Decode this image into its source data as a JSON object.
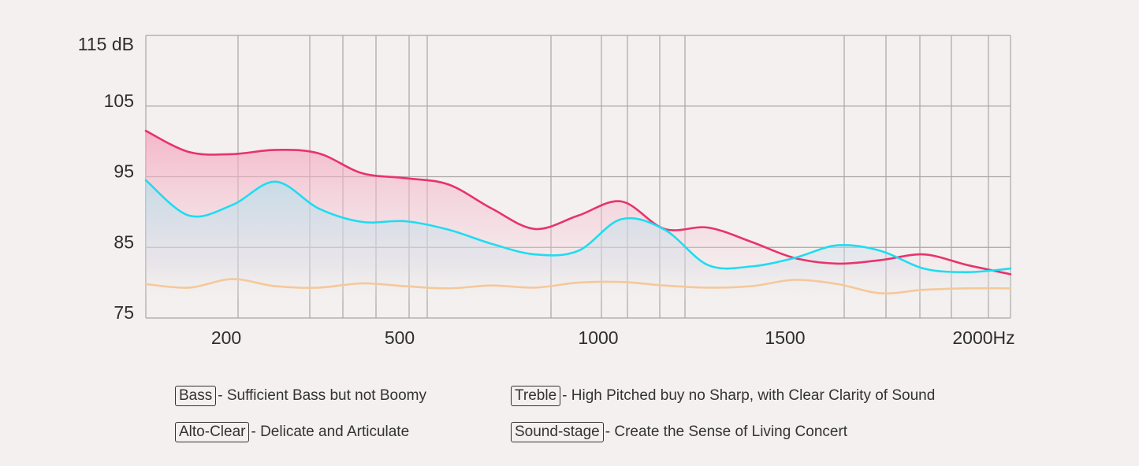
{
  "chart_data": {
    "type": "line",
    "title": "",
    "xlabel": "",
    "ylabel": "",
    "ylim": [
      75,
      115
    ],
    "y_ticks": [
      "115 dB",
      "105",
      "95",
      "85",
      "75"
    ],
    "y_tick_values": [
      115,
      105,
      95,
      85,
      75
    ],
    "x_tick_labels": [
      "200",
      "500",
      "1000",
      "1500",
      "2000Hz"
    ],
    "grid": true,
    "legend": "none",
    "series": [
      {
        "color": "#e8336b",
        "fill": "#f2a9c0",
        "x": [
          0,
          100,
          200,
          300,
          400,
          500,
          600,
          700,
          800,
          900,
          1000,
          1100,
          1200,
          1300,
          1400,
          1500,
          1600,
          1700,
          1800,
          1900,
          2000
        ],
        "values": [
          101.5,
          98.5,
          98.2,
          98.8,
          98.3,
          95.5,
          94.8,
          93.9,
          90.5,
          87.6,
          89.5,
          91.5,
          87.6,
          87.8,
          85.8,
          83.5,
          82.7,
          83.2,
          84.0,
          82.5,
          81.2
        ]
      },
      {
        "color": "#1fdcf0",
        "fill": "#a9e3ee",
        "x": [
          0,
          100,
          200,
          300,
          400,
          500,
          600,
          700,
          800,
          900,
          1000,
          1100,
          1200,
          1300,
          1400,
          1500,
          1600,
          1700,
          1800,
          1900,
          2000
        ],
        "values": [
          94.5,
          89.5,
          91.0,
          94.3,
          90.5,
          88.6,
          88.7,
          87.5,
          85.5,
          84.0,
          84.5,
          89.0,
          87.5,
          82.5,
          82.3,
          83.5,
          85.3,
          84.5,
          82.0,
          81.5,
          82.0
        ]
      },
      {
        "color": "#f5c89a",
        "x": [
          0,
          100,
          200,
          300,
          400,
          500,
          600,
          700,
          800,
          900,
          1000,
          1100,
          1200,
          1300,
          1400,
          1500,
          1600,
          1700,
          1800,
          1900,
          2000
        ],
        "values": [
          79.8,
          79.3,
          80.5,
          79.5,
          79.3,
          79.9,
          79.5,
          79.2,
          79.6,
          79.3,
          80.0,
          80.1,
          79.6,
          79.3,
          79.5,
          80.4,
          79.8,
          78.5,
          79.0,
          79.2,
          79.2
        ]
      }
    ]
  },
  "legend_items": [
    {
      "key": "Bass",
      "desc": "- Sufficient Bass but not Boomy"
    },
    {
      "key": "Alto-Clear",
      "desc": "- Delicate and Articulate"
    },
    {
      "key": "Treble",
      "desc": "- High Pitched buy no Sharp, with Clear Clarity of Sound"
    },
    {
      "key": "Sound-stage",
      "desc": "- Create the Sense of Living Concert"
    }
  ]
}
